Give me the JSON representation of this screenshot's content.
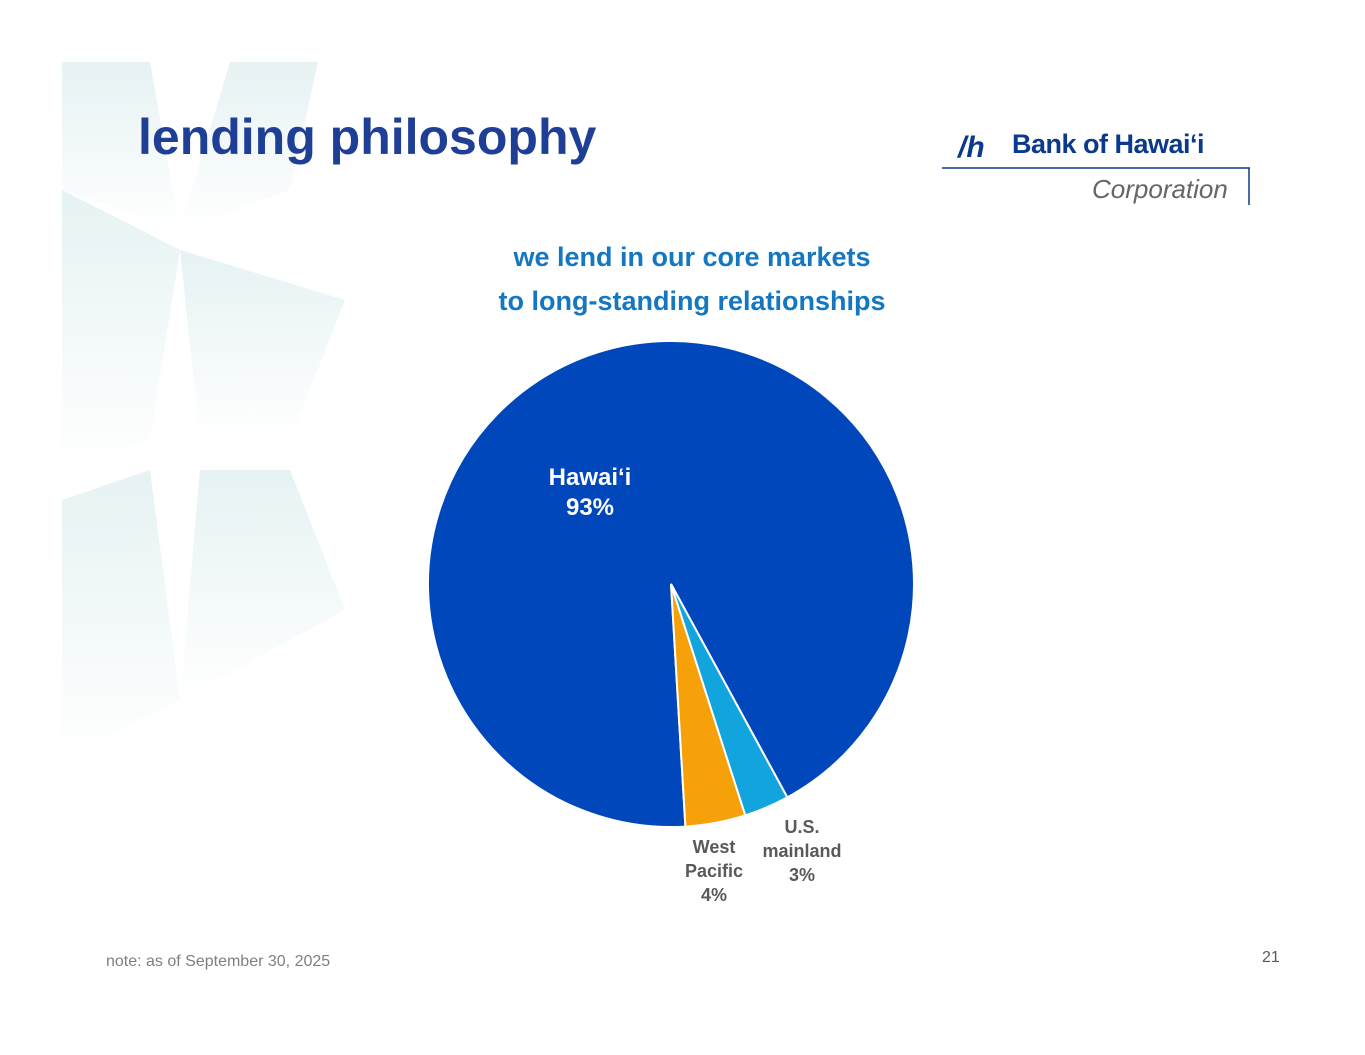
{
  "slide": {
    "title": "lending philosophy",
    "note": "note: as of September 30, 2025",
    "page_number": "21"
  },
  "logo": {
    "name": "Bank of Hawai‘i",
    "subtitle": "Corporation"
  },
  "chart_data": {
    "type": "pie",
    "subtitle": [
      "we lend in our core markets",
      "to long-standing relationships"
    ],
    "categories": [
      "Hawai‘i",
      "West Pacific",
      "U.S. mainland"
    ],
    "values": [
      93,
      4,
      3
    ],
    "value_labels": [
      "93%",
      "4%",
      "3%"
    ],
    "colors": [
      "#0047bb",
      "#f7a10a",
      "#12a5dd"
    ]
  }
}
